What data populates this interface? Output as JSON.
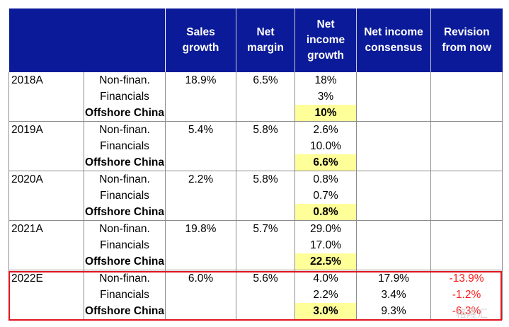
{
  "headers": {
    "col0": "",
    "sales_growth": [
      "Sales",
      "growth"
    ],
    "net_margin": [
      "Net",
      "margin"
    ],
    "net_income_growth": [
      "Net",
      "income",
      "growth"
    ],
    "net_income_consensus": [
      "Net income",
      "consensus"
    ],
    "revision": [
      "Revision",
      "from now"
    ]
  },
  "rows": [
    {
      "year": "2018A",
      "segment": "Non-finan.",
      "sales": "18.9%",
      "margin": "6.5%",
      "ni_growth": "18%",
      "consensus": "",
      "revision": ""
    },
    {
      "year": "",
      "segment": "Financials",
      "sales": "",
      "margin": "",
      "ni_growth": "3%",
      "consensus": "",
      "revision": ""
    },
    {
      "year": "",
      "segment": "Offshore China",
      "sales": "",
      "margin": "",
      "ni_growth": "10%",
      "consensus": "",
      "revision": ""
    },
    {
      "year": "2019A",
      "segment": "Non-finan.",
      "sales": "5.4%",
      "margin": "5.8%",
      "ni_growth": "2.6%",
      "consensus": "",
      "revision": ""
    },
    {
      "year": "",
      "segment": "Financials",
      "sales": "",
      "margin": "",
      "ni_growth": "10.0%",
      "consensus": "",
      "revision": ""
    },
    {
      "year": "",
      "segment": "Offshore China",
      "sales": "",
      "margin": "",
      "ni_growth": "6.6%",
      "consensus": "",
      "revision": ""
    },
    {
      "year": "2020A",
      "segment": "Non-finan.",
      "sales": "2.2%",
      "margin": "5.8%",
      "ni_growth": "0.8%",
      "consensus": "",
      "revision": ""
    },
    {
      "year": "",
      "segment": "Financials",
      "sales": "",
      "margin": "",
      "ni_growth": "0.7%",
      "consensus": "",
      "revision": ""
    },
    {
      "year": "",
      "segment": "Offshore China",
      "sales": "",
      "margin": "",
      "ni_growth": "0.8%",
      "consensus": "",
      "revision": ""
    },
    {
      "year": "2021A",
      "segment": "Non-finan.",
      "sales": "19.8%",
      "margin": "5.7%",
      "ni_growth": "29.0%",
      "consensus": "",
      "revision": ""
    },
    {
      "year": "",
      "segment": "Financials",
      "sales": "",
      "margin": "",
      "ni_growth": "17.0%",
      "consensus": "",
      "revision": ""
    },
    {
      "year": "",
      "segment": "Offshore China",
      "sales": "",
      "margin": "",
      "ni_growth": "22.5%",
      "consensus": "",
      "revision": ""
    },
    {
      "year": "2022E",
      "segment": "Non-finan.",
      "sales": "6.0%",
      "margin": "5.6%",
      "ni_growth": "4.0%",
      "consensus": "17.9%",
      "revision": "-13.9%"
    },
    {
      "year": "",
      "segment": "Financials",
      "sales": "",
      "margin": "",
      "ni_growth": "2.2%",
      "consensus": "3.4%",
      "revision": "-1.2%"
    },
    {
      "year": "",
      "segment": "Offshore China",
      "sales": "",
      "margin": "",
      "ni_growth": "3.0%",
      "consensus": "9.3%",
      "revision": "-6.3%"
    }
  ],
  "watermark": "格隆汇",
  "colors": {
    "header_bg": "#0a1a99",
    "highlight": "#ffff99",
    "red": "#ff1a1a",
    "box": "#e0141e"
  }
}
